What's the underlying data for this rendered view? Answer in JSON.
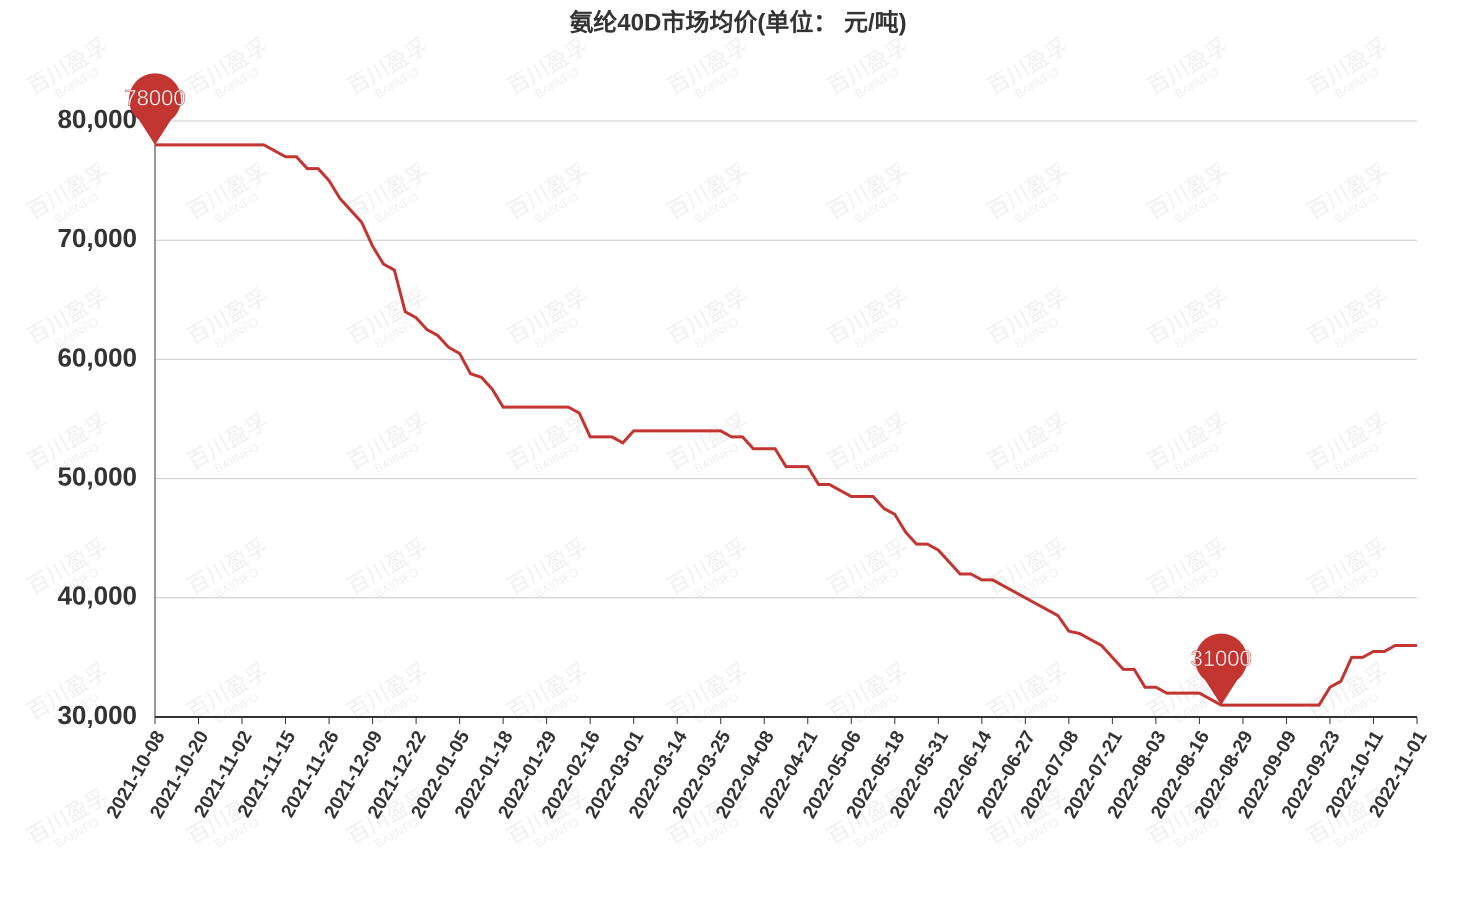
{
  "chart_data": {
    "type": "line",
    "title": "氨纶40D市场均价(单位： 元/吨)",
    "watermark": [
      "百川盈孚",
      "BAIINFO"
    ],
    "categories": [
      "2021-10-08",
      null,
      null,
      null,
      "2021-10-20",
      null,
      null,
      null,
      "2021-11-02",
      null,
      null,
      null,
      "2021-11-15",
      null,
      null,
      null,
      "2021-11-26",
      null,
      null,
      null,
      "2021-12-09",
      null,
      null,
      null,
      "2021-12-22",
      null,
      null,
      null,
      "2022-01-05",
      null,
      null,
      null,
      "2022-01-18",
      null,
      null,
      null,
      "2022-01-29",
      null,
      null,
      null,
      "2022-02-16",
      null,
      null,
      null,
      "2022-03-01",
      null,
      null,
      null,
      "2022-03-14",
      null,
      null,
      null,
      "2022-03-25",
      null,
      null,
      null,
      "2022-04-08",
      null,
      null,
      null,
      "2022-04-21",
      null,
      null,
      null,
      "2022-05-06",
      null,
      null,
      null,
      "2022-05-18",
      null,
      null,
      null,
      "2022-05-31",
      null,
      null,
      null,
      "2022-06-14",
      null,
      null,
      null,
      "2022-06-27",
      null,
      null,
      null,
      "2022-07-08",
      null,
      null,
      null,
      "2022-07-21",
      null,
      null,
      null,
      "2022-08-03",
      null,
      null,
      null,
      "2022-08-16",
      null,
      null,
      null,
      "2022-08-29",
      null,
      null,
      null,
      "2022-09-09",
      null,
      null,
      null,
      "2022-09-23",
      null,
      null,
      null,
      "2022-10-11",
      null,
      null,
      null,
      "2022-11-01"
    ],
    "series": [
      {
        "name": "氨纶40D",
        "color": "#c23531",
        "values": [
          78000,
          78000,
          78000,
          78000,
          78000,
          78000,
          78000,
          78000,
          78000,
          78000,
          78000,
          77500,
          77000,
          77000,
          76000,
          76000,
          75000,
          73500,
          72500,
          71500,
          69500,
          68000,
          67500,
          64000,
          63500,
          62500,
          62000,
          61000,
          60500,
          58800,
          58500,
          57500,
          56000,
          56000,
          56000,
          56000,
          56000,
          56000,
          56000,
          55500,
          53500,
          53500,
          53500,
          53000,
          54000,
          54000,
          54000,
          54000,
          54000,
          54000,
          54000,
          54000,
          54000,
          53500,
          53500,
          52500,
          52500,
          52500,
          51000,
          51000,
          51000,
          49500,
          49500,
          49000,
          48500,
          48500,
          48500,
          47500,
          47000,
          45500,
          44500,
          44500,
          44000,
          43000,
          42000,
          42000,
          41500,
          41500,
          41000,
          40500,
          40000,
          39500,
          39000,
          38500,
          37200,
          37000,
          36500,
          36000,
          35000,
          34000,
          34000,
          32500,
          32500,
          32000,
          32000,
          32000,
          32000,
          31500,
          31000,
          31000,
          31000,
          31000,
          31000,
          31000,
          31000,
          31000,
          31000,
          31000,
          32500,
          33000,
          35000,
          35000,
          35500,
          35500,
          36000,
          36000,
          36000
        ]
      }
    ],
    "mark_points": [
      78000,
      31000
    ],
    "ylim": [
      30000,
      80000
    ],
    "yticks": [
      {
        "value": 30000,
        "label": "30,000"
      },
      {
        "value": 40000,
        "label": "40,000"
      },
      {
        "value": 50000,
        "label": "50,000"
      },
      {
        "value": 60000,
        "label": "60,000"
      },
      {
        "value": 70000,
        "label": "70,000"
      },
      {
        "value": 80000,
        "label": "80,000"
      }
    ],
    "grid": true
  }
}
